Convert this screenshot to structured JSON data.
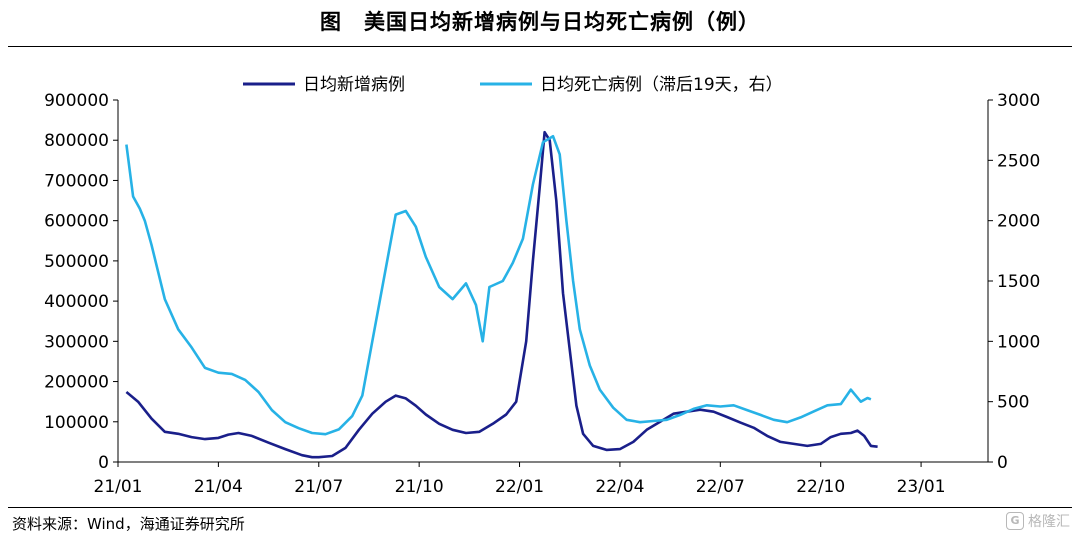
{
  "title": "图　美国日均新增病例与日均死亡病例（例）",
  "source": "资料来源：Wind，海通证券研究所",
  "watermark": "格隆汇",
  "colors": {
    "cases": "#1a1f8a",
    "deaths": "#27b2e6",
    "axis": "#000000"
  },
  "chart_data": {
    "type": "line",
    "xlabel": "",
    "ylabel": "",
    "y2label": "",
    "x_ticks": [
      "21/01",
      "21/04",
      "21/07",
      "21/10",
      "22/01",
      "22/04",
      "22/07",
      "22/10",
      "23/01"
    ],
    "x_range": [
      "21/01",
      "23/03"
    ],
    "ylim": [
      0,
      900000
    ],
    "y2lim": [
      0,
      3000
    ],
    "y_ticks": [
      0,
      100000,
      200000,
      300000,
      400000,
      500000,
      600000,
      700000,
      800000,
      900000
    ],
    "y2_ticks": [
      0,
      500,
      1000,
      1500,
      2000,
      2500,
      3000
    ],
    "legend": "top-center",
    "grid": false,
    "series": [
      {
        "name": "日均新增病例",
        "axis": "left",
        "color": "#1a1f8a",
        "points": [
          [
            0.25,
            174000
          ],
          [
            0.6,
            150000
          ],
          [
            1.0,
            108000
          ],
          [
            1.4,
            75000
          ],
          [
            1.8,
            70000
          ],
          [
            2.2,
            62000
          ],
          [
            2.6,
            57000
          ],
          [
            3.0,
            60000
          ],
          [
            3.3,
            68000
          ],
          [
            3.6,
            72000
          ],
          [
            4.0,
            65000
          ],
          [
            4.5,
            48000
          ],
          [
            5.0,
            32000
          ],
          [
            5.5,
            17000
          ],
          [
            5.8,
            12000
          ],
          [
            6.0,
            12000
          ],
          [
            6.4,
            15000
          ],
          [
            6.8,
            35000
          ],
          [
            7.2,
            80000
          ],
          [
            7.6,
            120000
          ],
          [
            8.0,
            150000
          ],
          [
            8.3,
            165000
          ],
          [
            8.6,
            158000
          ],
          [
            8.9,
            140000
          ],
          [
            9.2,
            118000
          ],
          [
            9.6,
            95000
          ],
          [
            10.0,
            80000
          ],
          [
            10.4,
            72000
          ],
          [
            10.8,
            75000
          ],
          [
            11.2,
            95000
          ],
          [
            11.6,
            118000
          ],
          [
            11.9,
            150000
          ],
          [
            12.2,
            300000
          ],
          [
            12.4,
            500000
          ],
          [
            12.6,
            680000
          ],
          [
            12.75,
            820000
          ],
          [
            12.9,
            800000
          ],
          [
            13.1,
            650000
          ],
          [
            13.3,
            420000
          ],
          [
            13.5,
            280000
          ],
          [
            13.7,
            140000
          ],
          [
            13.9,
            70000
          ],
          [
            14.2,
            40000
          ],
          [
            14.6,
            30000
          ],
          [
            15.0,
            32000
          ],
          [
            15.4,
            50000
          ],
          [
            15.8,
            80000
          ],
          [
            16.2,
            100000
          ],
          [
            16.6,
            120000
          ],
          [
            17.0,
            125000
          ],
          [
            17.4,
            130000
          ],
          [
            17.8,
            125000
          ],
          [
            18.2,
            112000
          ],
          [
            18.6,
            98000
          ],
          [
            19.0,
            85000
          ],
          [
            19.4,
            65000
          ],
          [
            19.8,
            50000
          ],
          [
            20.2,
            45000
          ],
          [
            20.6,
            40000
          ],
          [
            21.0,
            45000
          ],
          [
            21.3,
            62000
          ],
          [
            21.6,
            70000
          ],
          [
            21.9,
            72000
          ],
          [
            22.1,
            78000
          ],
          [
            22.3,
            65000
          ],
          [
            22.5,
            40000
          ],
          [
            22.7,
            38000
          ]
        ]
      },
      {
        "name": "日均死亡病例（滞后19天，右）",
        "axis": "right",
        "color": "#27b2e6",
        "points": [
          [
            0.25,
            2630
          ],
          [
            0.45,
            2200
          ],
          [
            0.65,
            2100
          ],
          [
            0.8,
            2000
          ],
          [
            1.0,
            1800
          ],
          [
            1.4,
            1350
          ],
          [
            1.8,
            1100
          ],
          [
            2.2,
            950
          ],
          [
            2.6,
            780
          ],
          [
            3.0,
            740
          ],
          [
            3.4,
            730
          ],
          [
            3.8,
            680
          ],
          [
            4.2,
            580
          ],
          [
            4.6,
            430
          ],
          [
            5.0,
            330
          ],
          [
            5.4,
            280
          ],
          [
            5.8,
            240
          ],
          [
            6.2,
            230
          ],
          [
            6.6,
            270
          ],
          [
            7.0,
            380
          ],
          [
            7.3,
            550
          ],
          [
            7.6,
            1000
          ],
          [
            8.0,
            1600
          ],
          [
            8.3,
            2050
          ],
          [
            8.6,
            2080
          ],
          [
            8.9,
            1950
          ],
          [
            9.2,
            1700
          ],
          [
            9.6,
            1450
          ],
          [
            10.0,
            1350
          ],
          [
            10.4,
            1480
          ],
          [
            10.7,
            1300
          ],
          [
            10.9,
            1000
          ],
          [
            11.1,
            1450
          ],
          [
            11.5,
            1500
          ],
          [
            11.8,
            1650
          ],
          [
            12.1,
            1850
          ],
          [
            12.4,
            2300
          ],
          [
            12.7,
            2650
          ],
          [
            13.0,
            2700
          ],
          [
            13.2,
            2550
          ],
          [
            13.4,
            2000
          ],
          [
            13.6,
            1500
          ],
          [
            13.8,
            1100
          ],
          [
            14.1,
            800
          ],
          [
            14.4,
            600
          ],
          [
            14.8,
            450
          ],
          [
            15.2,
            350
          ],
          [
            15.6,
            330
          ],
          [
            16.0,
            340
          ],
          [
            16.4,
            350
          ],
          [
            16.8,
            390
          ],
          [
            17.2,
            440
          ],
          [
            17.6,
            470
          ],
          [
            18.0,
            460
          ],
          [
            18.4,
            470
          ],
          [
            18.8,
            430
          ],
          [
            19.2,
            390
          ],
          [
            19.6,
            350
          ],
          [
            20.0,
            330
          ],
          [
            20.4,
            370
          ],
          [
            20.8,
            420
          ],
          [
            21.2,
            470
          ],
          [
            21.6,
            480
          ],
          [
            21.9,
            600
          ],
          [
            22.2,
            500
          ],
          [
            22.4,
            530
          ],
          [
            22.5,
            520
          ]
        ]
      }
    ]
  }
}
